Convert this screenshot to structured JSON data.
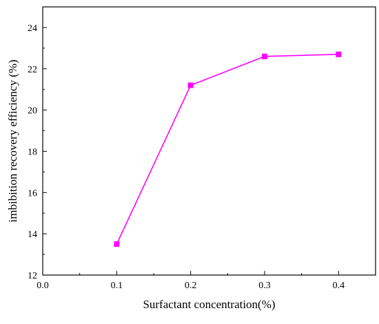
{
  "chart_data": {
    "type": "line",
    "title": "",
    "xlabel": "Surfactant concentration(%)",
    "ylabel": "imbibition recovery efficiency (%)",
    "xlim": [
      0.0,
      0.45
    ],
    "ylim": [
      12,
      25
    ],
    "x_ticks": [
      "0.0",
      "0.1",
      "0.2",
      "0.3",
      "0.4"
    ],
    "y_ticks": [
      "12",
      "14",
      "16",
      "18",
      "20",
      "22",
      "24"
    ],
    "grid": false,
    "legend": "none",
    "series": [
      {
        "color": "#ff00ff",
        "marker": "square",
        "x": [
          0.1,
          0.2,
          0.3,
          0.4
        ],
        "y": [
          13.5,
          21.2,
          22.6,
          22.7
        ]
      }
    ]
  }
}
